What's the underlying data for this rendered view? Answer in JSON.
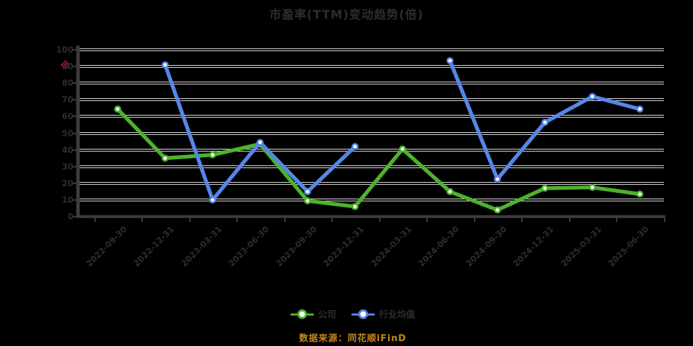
{
  "title": "市盈率(TTM)变动趋势(倍)",
  "y_axis": {
    "alert_marker": "※",
    "alert_marker_color": "#e60000",
    "tick_labels": [
      100,
      90,
      80,
      70,
      60,
      50,
      40,
      30,
      20,
      10,
      0
    ]
  },
  "chart_data": {
    "type": "line",
    "title": "市盈率(TTM)变动趋势(倍)",
    "categories": [
      "2022-09-30",
      "2022-12-31",
      "2023-03-31",
      "2023-06-30",
      "2023-09-30",
      "2023-12-31",
      "2024-03-31",
      "2024-06-30",
      "2024-09-30",
      "2024-12-31",
      "2025-03-31",
      "2025-06-30"
    ],
    "series": [
      {
        "name": "公司",
        "color": "#4cb32b",
        "values": [
          64.5,
          35,
          37,
          43.5,
          9.5,
          6,
          40.5,
          15,
          4,
          17,
          17.5,
          13.5
        ]
      },
      {
        "name": "行业均值",
        "color": "#5586e8",
        "values": [
          null,
          91,
          10,
          44.5,
          15,
          42,
          null,
          93.5,
          22.5,
          56.5,
          72,
          64.5
        ]
      }
    ],
    "ylim": [
      0,
      100
    ],
    "y_tick_step": 10,
    "grid": true,
    "legend_position": "bottom",
    "x_label_rotation": 45
  },
  "legend": [
    {
      "label": "公司",
      "color": "#4cb32b"
    },
    {
      "label": "行业均值",
      "color": "#5586e8"
    }
  ],
  "source_note": {
    "text": "数据来源：同花顺iFinD",
    "color": "#c8871c"
  },
  "colors": {
    "background": "#000000",
    "gridline": "#e4e4e4",
    "axis": "#3c3c3c",
    "text": "#2d2d2d"
  }
}
